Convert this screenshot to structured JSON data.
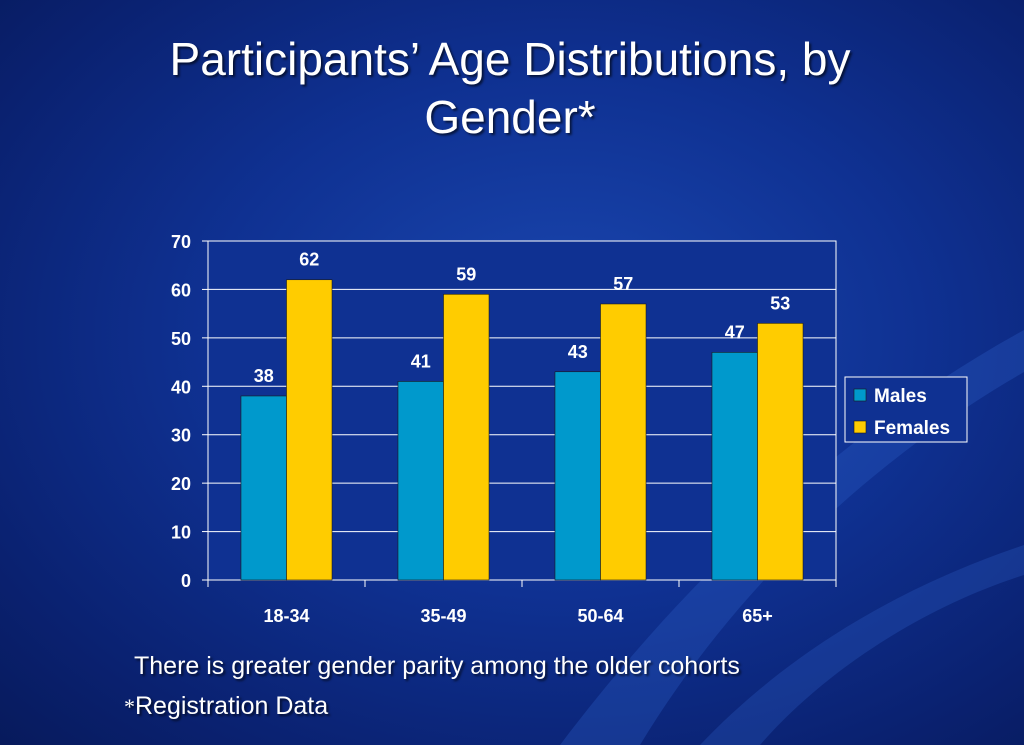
{
  "slide": {
    "title_line1": "Participants’ Age Distributions, by",
    "title_line2": "Gender*",
    "note": "There is greater gender parity among the older cohorts",
    "footnote_marker": "*",
    "footnote": "Registration Data"
  },
  "colors": {
    "background": "#0f3192",
    "males": "#0099cc",
    "females": "#ffcc00",
    "plot_area": "#0f3192",
    "text": "#ffffff"
  },
  "chart_data": {
    "type": "bar",
    "title": "",
    "xlabel": "",
    "ylabel": "",
    "categories": [
      "18-34",
      "35-49",
      "50-64",
      "65+"
    ],
    "series": [
      {
        "name": "Males",
        "values": [
          38,
          41,
          43,
          47
        ],
        "color": "#0099cc"
      },
      {
        "name": "Females",
        "values": [
          62,
          59,
          57,
          53
        ],
        "color": "#ffcc00"
      }
    ],
    "ylim": [
      0,
      70
    ],
    "yticks": [
      0,
      10,
      20,
      30,
      40,
      50,
      60,
      70
    ],
    "grid": true,
    "data_labels": true,
    "legend_position": "right"
  }
}
